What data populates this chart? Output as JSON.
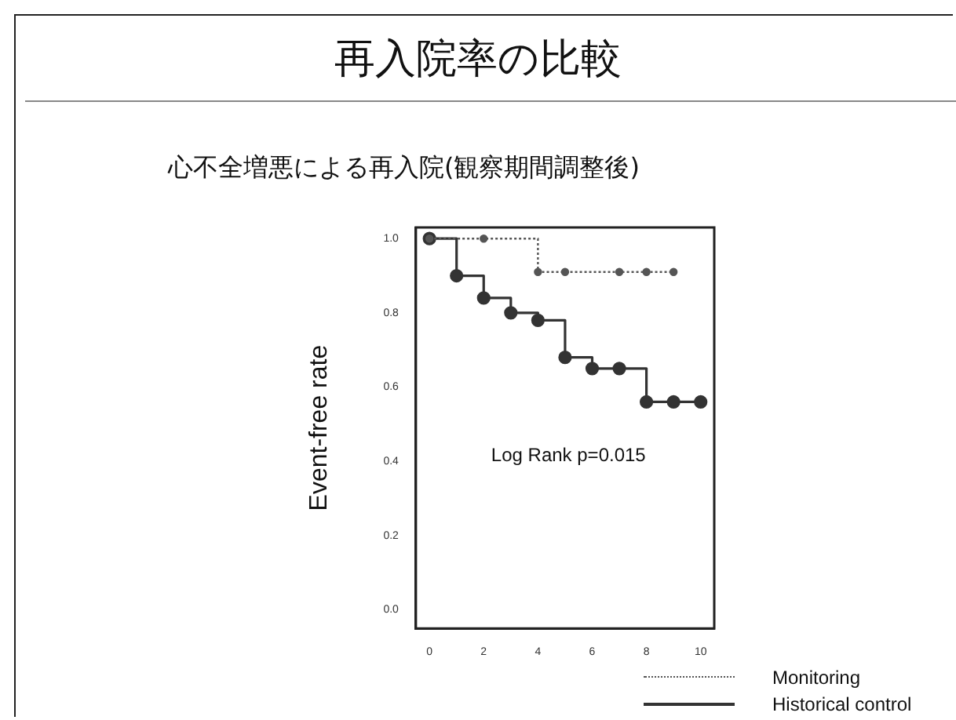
{
  "chart_data": {
    "type": "step",
    "title": "再入院率の比較",
    "subtitle": "心不全増悪による再入院(観察期間調整後)",
    "ylabel": "Event-free rate",
    "annotations": [
      "Log Rank p=0.015"
    ],
    "series": [
      {
        "name": "Monitoring",
        "color": "#555555",
        "line_style": "dotted",
        "x": [
          0,
          2,
          4,
          5,
          7,
          8,
          9
        ],
        "values": [
          1,
          1,
          0.91,
          0.91,
          0.91,
          0.91,
          0.91
        ]
      },
      {
        "name": "Historical control",
        "color": "#333333",
        "line_style": "solid",
        "x": [
          0,
          1,
          2,
          3,
          4,
          5,
          6,
          7,
          8,
          9,
          10
        ],
        "values": [
          1,
          0.9,
          0.84,
          0.8,
          0.78,
          0.68,
          0.65,
          0.65,
          0.56,
          0.56,
          0.56
        ]
      }
    ],
    "xlim": [
      -0.5,
      10.5
    ],
    "xticks": [
      0,
      2,
      4,
      6,
      8,
      10
    ],
    "ylim": [
      -0.05,
      1.03
    ],
    "yticks": [
      {
        "value": 0,
        "label": "0.0"
      },
      {
        "value": 0.2,
        "label": "0.2"
      },
      {
        "value": 0.4,
        "label": "0.4"
      },
      {
        "value": 0.6,
        "label": "0.6"
      },
      {
        "value": 0.8,
        "label": "0.8"
      },
      {
        "value": 1,
        "label": "1.0"
      }
    ],
    "grid": false,
    "legend": "bottom right",
    "marker": "circle"
  }
}
